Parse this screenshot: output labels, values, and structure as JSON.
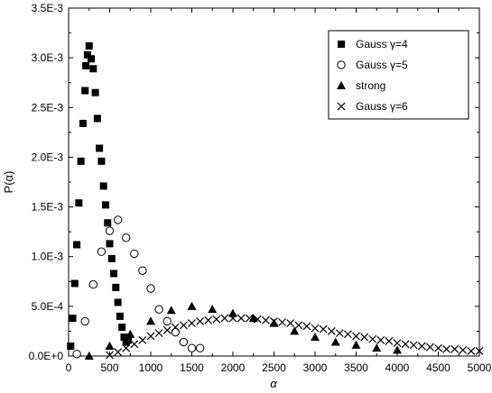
{
  "chart_data": {
    "type": "scatter",
    "title": "",
    "xlabel": "α",
    "ylabel": "P(α)",
    "xlim": [
      0,
      5000
    ],
    "ylim": [
      0,
      0.0035
    ],
    "grid": false,
    "legend_position": "top-right",
    "x_ticks": [
      0,
      500,
      1000,
      1500,
      2000,
      2500,
      3000,
      3500,
      4000,
      4500,
      5000
    ],
    "x_tick_labels": [
      "0",
      "500",
      "1000",
      "1500",
      "2000",
      "2500",
      "3000",
      "3500",
      "4000",
      "4500",
      "5000"
    ],
    "y_ticks": [
      0,
      0.0005,
      0.001,
      0.0015,
      0.002,
      0.0025,
      0.003,
      0.0035
    ],
    "y_tick_labels": [
      "0.0E+0",
      "5.0E-4",
      "1.0E-3",
      "1.5E-3",
      "2.0E-3",
      "2.5E-3",
      "3.0E-3",
      "3.5E-3"
    ],
    "series": [
      {
        "name": "Gauss γ=4",
        "marker": "filled-square",
        "color": "#000000",
        "points": [
          [
            25,
            0.0001
          ],
          [
            50,
            0.00038
          ],
          [
            75,
            0.00073
          ],
          [
            100,
            0.00112
          ],
          [
            125,
            0.00154
          ],
          [
            150,
            0.00196
          ],
          [
            175,
            0.00234
          ],
          [
            200,
            0.00267
          ],
          [
            210,
            0.00292
          ],
          [
            230,
            0.00303
          ],
          [
            250,
            0.00312
          ],
          [
            275,
            0.00299
          ],
          [
            300,
            0.00289
          ],
          [
            325,
            0.00265
          ],
          [
            350,
            0.00239
          ],
          [
            375,
            0.00209
          ],
          [
            400,
            0.00196
          ],
          [
            425,
            0.00171
          ],
          [
            450,
            0.00152
          ],
          [
            475,
            0.00134
          ],
          [
            500,
            0.00113
          ],
          [
            525,
            0.00098
          ],
          [
            550,
            0.00083
          ],
          [
            575,
            0.00069
          ],
          [
            600,
            0.00054
          ],
          [
            625,
            0.0004
          ],
          [
            650,
            0.00029
          ],
          [
            675,
            0.00019
          ],
          [
            700,
            0.00014
          ],
          [
            725,
            0.00016
          ]
        ]
      },
      {
        "name": "Gauss γ=5",
        "marker": "open-circle",
        "color": "#000000",
        "points": [
          [
            100,
            2e-05
          ],
          [
            200,
            0.00035
          ],
          [
            300,
            0.00072
          ],
          [
            400,
            0.00105
          ],
          [
            500,
            0.00126
          ],
          [
            600,
            0.00137
          ],
          [
            700,
            0.00119
          ],
          [
            800,
            0.00103
          ],
          [
            900,
            0.00086
          ],
          [
            1000,
            0.00068
          ],
          [
            1100,
            0.00047
          ],
          [
            1200,
            0.00035
          ],
          [
            1300,
            0.00024
          ],
          [
            1400,
            0.00014
          ],
          [
            1500,
            8e-05
          ],
          [
            1600,
            8e-05
          ]
        ]
      },
      {
        "name": "strong",
        "marker": "filled-triangle",
        "color": "#000000",
        "points": [
          [
            250,
            0.0
          ],
          [
            500,
            0.0001
          ],
          [
            750,
            0.00022
          ],
          [
            1000,
            0.00035
          ],
          [
            1250,
            0.00046
          ],
          [
            1500,
            0.0005
          ],
          [
            1750,
            0.00047
          ],
          [
            2000,
            0.00043
          ],
          [
            2250,
            0.00038
          ],
          [
            2500,
            0.00033
          ],
          [
            2750,
            0.00025
          ],
          [
            3000,
            0.00019
          ],
          [
            3250,
            0.00014
          ],
          [
            3500,
            0.00011
          ],
          [
            3750,
            8e-05
          ],
          [
            4000,
            6e-05
          ]
        ]
      },
      {
        "name": "Gauss γ=6",
        "marker": "cross",
        "color": "#000000",
        "points": [
          [
            500,
            1e-05
          ],
          [
            600,
            4e-05
          ],
          [
            700,
            8e-05
          ],
          [
            800,
            0.00012
          ],
          [
            900,
            0.00016
          ],
          [
            1000,
            0.0002
          ],
          [
            1100,
            0.00023
          ],
          [
            1200,
            0.00026
          ],
          [
            1300,
            0.00029
          ],
          [
            1400,
            0.00031
          ],
          [
            1500,
            0.00033
          ],
          [
            1600,
            0.00035
          ],
          [
            1700,
            0.00036
          ],
          [
            1800,
            0.00037
          ],
          [
            1900,
            0.00038
          ],
          [
            2000,
            0.00038
          ],
          [
            2100,
            0.00038
          ],
          [
            2200,
            0.00038
          ],
          [
            2300,
            0.00037
          ],
          [
            2400,
            0.00036
          ],
          [
            2500,
            0.00035
          ],
          [
            2600,
            0.00034
          ],
          [
            2700,
            0.00033
          ],
          [
            2800,
            0.00031
          ],
          [
            2900,
            0.0003
          ],
          [
            3000,
            0.00028
          ],
          [
            3100,
            0.00027
          ],
          [
            3200,
            0.00025
          ],
          [
            3300,
            0.00023
          ],
          [
            3400,
            0.00022
          ],
          [
            3500,
            0.0002
          ],
          [
            3600,
            0.00019
          ],
          [
            3700,
            0.00017
          ],
          [
            3800,
            0.00016
          ],
          [
            3900,
            0.00015
          ],
          [
            4000,
            0.00013
          ],
          [
            4100,
            0.00012
          ],
          [
            4200,
            0.00011
          ],
          [
            4300,
            0.0001
          ],
          [
            4400,
            9e-05
          ],
          [
            4500,
            8e-05
          ],
          [
            4600,
            7e-05
          ],
          [
            4700,
            7e-05
          ],
          [
            4800,
            6e-05
          ],
          [
            4900,
            5e-05
          ],
          [
            5000,
            5e-05
          ]
        ]
      }
    ]
  }
}
